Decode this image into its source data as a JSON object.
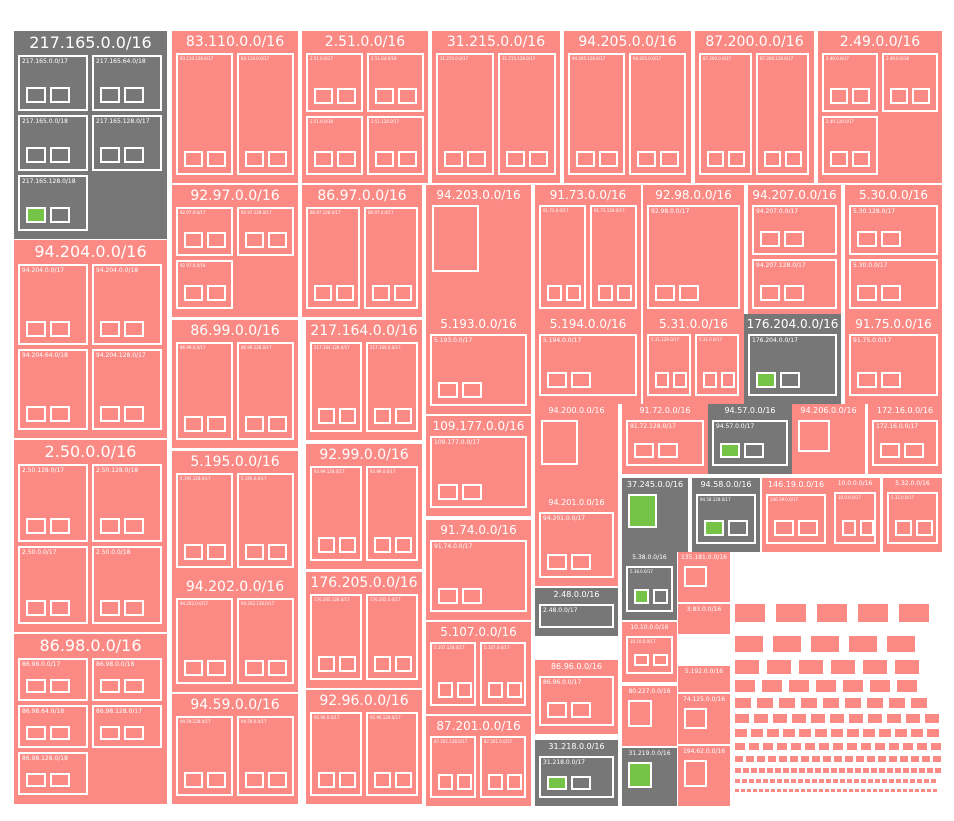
{
  "title": "",
  "colors": {
    "allocated": "#fb8a85",
    "grey": "#777777",
    "green": "#75c447",
    "border": "#ffffff"
  },
  "blocks": [
    {
      "cidr": "217.165.0.0/16",
      "tone": "grey",
      "children": [
        "217.165.0.0/17",
        "217.165.64.0/18",
        "217.165.0.0/18",
        "217.165.128.0/17",
        "217.165.128.0/18"
      ]
    },
    {
      "cidr": "83.110.0.0/16",
      "tone": "red",
      "children": [
        "83.110.128.0/17",
        "83.110.0.0/17"
      ]
    },
    {
      "cidr": "2.51.0.0/16",
      "tone": "red",
      "children": [
        "2.51.0.0/17",
        "2.51.64.0/18",
        "2.51.0.0/18",
        "2.51.128.0/17"
      ]
    },
    {
      "cidr": "31.215.0.0/16",
      "tone": "red",
      "children": [
        "31.215.0.0/17",
        "31.215.128.0/17"
      ]
    },
    {
      "cidr": "94.205.0.0/16",
      "tone": "red",
      "children": [
        "94.205.128.0/17",
        "94.205.0.0/17"
      ]
    },
    {
      "cidr": "87.200.0.0/16",
      "tone": "red",
      "children": [
        "87.200.0.0/17",
        "87.200.128.0/17"
      ]
    },
    {
      "cidr": "2.49.0.0/16",
      "tone": "red",
      "children": [
        "2.49.0.0/17",
        "2.49.0.0/18",
        "2.49.128.0/17"
      ]
    },
    {
      "cidr": "94.204.0.0/16",
      "tone": "red",
      "children": [
        "94.204.0.0/17",
        "94.204.0.0/18",
        "94.204.64.0/18",
        "94.204.128.0/17"
      ]
    },
    {
      "cidr": "92.97.0.0/16",
      "tone": "red",
      "children": [
        "92.97.0.0/17",
        "92.97.128.0/17",
        "92.97.0.0/18"
      ]
    },
    {
      "cidr": "86.97.0.0/16",
      "tone": "red",
      "children": [
        "86.97.128.0/17",
        "86.97.0.0/17"
      ]
    },
    {
      "cidr": "94.203.0.0/16",
      "tone": "red",
      "children": []
    },
    {
      "cidr": "91.73.0.0/16",
      "tone": "red",
      "children": [
        "91.73.0.0/17",
        "91.73.128.0/17"
      ]
    },
    {
      "cidr": "92.98.0.0/16",
      "tone": "red",
      "children": [
        "92.98.0.0/17"
      ]
    },
    {
      "cidr": "94.207.0.0/16",
      "tone": "red",
      "children": [
        "94.207.0.0/17",
        "94.207.128.0/17"
      ]
    },
    {
      "cidr": "5.30.0.0/16",
      "tone": "red",
      "children": [
        "5.30.128.0/17",
        "5.30.0.0/17"
      ]
    },
    {
      "cidr": "2.50.0.0/16",
      "tone": "red",
      "children": [
        "2.50.128.0/17",
        "2.50.128.0/18",
        "2.50.0.0/17",
        "2.50.0.0/18"
      ]
    },
    {
      "cidr": "86.99.0.0/16",
      "tone": "red",
      "children": [
        "86.99.0.0/17",
        "86.99.128.0/17"
      ]
    },
    {
      "cidr": "217.164.0.0/16",
      "tone": "red",
      "children": [
        "217.164.128.0/17",
        "217.164.0.0/17"
      ]
    },
    {
      "cidr": "5.193.0.0/16",
      "tone": "red",
      "children": [
        "5.193.0.0/17"
      ]
    },
    {
      "cidr": "5.194.0.0/16",
      "tone": "red",
      "children": [
        "5.194.0.0/17"
      ]
    },
    {
      "cidr": "5.31.0.0/16",
      "tone": "red",
      "children": [
        "5.31.128.0/17",
        "5.31.0.0/17"
      ]
    },
    {
      "cidr": "176.204.0.0/16",
      "tone": "grey",
      "children": [
        "176.204.0.0/17"
      ]
    },
    {
      "cidr": "91.75.0.0/16",
      "tone": "red",
      "children": [
        "91.75.0.0/17"
      ]
    },
    {
      "cidr": "109.177.0.0/16",
      "tone": "red",
      "children": [
        "109.177.0.0/17"
      ]
    },
    {
      "cidr": "94.200.0.0/16",
      "tone": "red",
      "children": []
    },
    {
      "cidr": "91.72.0.0/16",
      "tone": "red",
      "children": [
        "91.72.128.0/17"
      ]
    },
    {
      "cidr": "94.57.0.0/16",
      "tone": "grey",
      "children": [
        "94.57.0.0/17"
      ]
    },
    {
      "cidr": "94.206.0.0/16",
      "tone": "red",
      "children": []
    },
    {
      "cidr": "172.16.0.0/16",
      "tone": "red",
      "children": [
        "172.16.0.0/17"
      ]
    },
    {
      "cidr": "5.195.0.0/16",
      "tone": "red",
      "children": [
        "5.195.128.0/17",
        "5.195.0.0/17"
      ]
    },
    {
      "cidr": "92.99.0.0/16",
      "tone": "red",
      "children": [
        "92.99.128.0/17",
        "92.99.0.0/17"
      ]
    },
    {
      "cidr": "37.245.0.0/16",
      "tone": "grey",
      "children": []
    },
    {
      "cidr": "94.58.0.0/16",
      "tone": "grey",
      "children": [
        "94.58.128.0/17"
      ]
    },
    {
      "cidr": "146.19.0.0/16",
      "tone": "red",
      "children": [
        "146.19.0.0/17"
      ]
    },
    {
      "cidr": "10.0.0.0/16",
      "tone": "red",
      "children": [
        "10.0.0.0/17"
      ]
    },
    {
      "cidr": "5.32.0.0/16",
      "tone": "red",
      "children": [
        "5.32.0.0/17"
      ]
    },
    {
      "cidr": "94.201.0.0/16",
      "tone": "red",
      "children": [
        "94.201.0.0/17"
      ]
    },
    {
      "cidr": "91.74.0.0/16",
      "tone": "red",
      "children": [
        "91.74.0.0/17"
      ]
    },
    {
      "cidr": "94.202.0.0/16",
      "tone": "red",
      "children": [
        "94.202.0.0/17",
        "94.202.128.0/17"
      ]
    },
    {
      "cidr": "176.205.0.0/16",
      "tone": "red",
      "children": [
        "176.205.128.0/17",
        "176.205.0.0/17"
      ]
    },
    {
      "cidr": "5.38.0.0/16",
      "tone": "grey",
      "children": [
        "5.38.0.0/17"
      ]
    },
    {
      "cidr": "135.181.0.0/16",
      "tone": "red",
      "children": []
    },
    {
      "cidr": "2.48.0.0/16",
      "tone": "grey",
      "children": [
        "2.48.0.0/17"
      ]
    },
    {
      "cidr": "3.83.0.0/16",
      "tone": "red",
      "children": []
    },
    {
      "cidr": "10.10.0.0/16",
      "tone": "red",
      "children": [
        "10.10.0.0/17"
      ]
    },
    {
      "cidr": "5.107.0.0/16",
      "tone": "red",
      "children": [
        "5.107.128.0/17",
        "5.107.0.0/17"
      ]
    },
    {
      "cidr": "86.98.0.0/16",
      "tone": "red",
      "children": [
        "86.98.0.0/17",
        "86.98.0.0/18",
        "86.98.64.0/18",
        "86.98.128.0/17",
        "86.98.128.0/18"
      ]
    },
    {
      "cidr": "94.59.0.0/16",
      "tone": "red",
      "children": [
        "94.59.128.0/17",
        "94.59.0.0/17"
      ]
    },
    {
      "cidr": "92.96.0.0/16",
      "tone": "red",
      "children": [
        "92.96.0.0/17",
        "92.96.128.0/17"
      ]
    },
    {
      "cidr": "86.96.0.0/16",
      "tone": "red",
      "children": [
        "86.96.0.0/17"
      ]
    },
    {
      "cidr": "80.227.0.0/16",
      "tone": "red",
      "children": []
    },
    {
      "cidr": "5.192.0.0/16",
      "tone": "red",
      "children": []
    },
    {
      "cidr": "74.125.0.0/16",
      "tone": "red",
      "children": []
    },
    {
      "cidr": "87.201.0.0/16",
      "tone": "red",
      "children": [
        "87.201.128.0/17",
        "87.201.0.0/17"
      ]
    },
    {
      "cidr": "31.218.0.0/16",
      "tone": "grey",
      "children": [
        "31.218.0.0/17"
      ]
    },
    {
      "cidr": "31.219.0.0/16",
      "tone": "grey",
      "children": []
    },
    {
      "cidr": "194.62.0.0/16",
      "tone": "red",
      "children": []
    }
  ]
}
